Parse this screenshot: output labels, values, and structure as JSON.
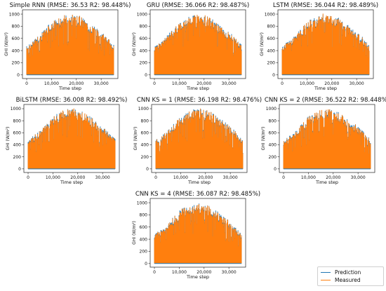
{
  "colors": {
    "prediction": "#1f77b4",
    "measured": "#ff7f0e"
  },
  "legend": {
    "placement": "bottom-right",
    "entries": [
      "Prediction",
      "Measured"
    ]
  },
  "chart_data": [
    {
      "type": "line",
      "title": "Simple RNN (RMSE: 36.53  R2: 98.448%)",
      "xlabel": "Time step",
      "ylabel": "GHI (W/m²)",
      "xlim": [
        0,
        35040
      ],
      "ylim": [
        0,
        1000
      ],
      "xticks": [
        "0",
        "10,000",
        "20,000",
        "30,000"
      ],
      "yticks": [
        "0",
        "200",
        "400",
        "600",
        "800",
        "1000"
      ],
      "series": [
        {
          "name": "Prediction",
          "peak_envelope": {
            "x": [
              0,
              5000,
              10000,
              15000,
              18000,
              22000,
              27000,
              32000,
              35040
            ],
            "y": [
              480,
              650,
              880,
              990,
              1000,
              960,
              810,
              640,
              500
            ]
          }
        },
        {
          "name": "Measured",
          "peak_envelope": {
            "x": [
              0,
              5000,
              10000,
              15000,
              18000,
              22000,
              27000,
              32000,
              35040
            ],
            "y": [
              470,
              640,
              870,
              985,
              1000,
              955,
              800,
              630,
              490
            ]
          }
        }
      ]
    },
    {
      "type": "line",
      "title": "GRU (RMSE: 36.066  R2: 98.487%)",
      "xlabel": "Time step",
      "ylabel": "GHI (W/m²)",
      "xlim": [
        0,
        35040
      ],
      "ylim": [
        0,
        1000
      ],
      "xticks": [
        "0",
        "10,000",
        "20,000",
        "30,000"
      ],
      "yticks": [
        "0",
        "200",
        "400",
        "600",
        "800",
        "1000"
      ],
      "series": [
        {
          "name": "Prediction",
          "peak_envelope": {
            "x": [
              0,
              5000,
              10000,
              15000,
              18000,
              22000,
              27000,
              32000,
              35040
            ],
            "y": [
              480,
              650,
              880,
              990,
              1000,
              960,
              810,
              640,
              500
            ]
          }
        },
        {
          "name": "Measured",
          "peak_envelope": {
            "x": [
              0,
              5000,
              10000,
              15000,
              18000,
              22000,
              27000,
              32000,
              35040
            ],
            "y": [
              470,
              640,
              870,
              985,
              1000,
              955,
              800,
              630,
              490
            ]
          }
        }
      ]
    },
    {
      "type": "line",
      "title": "LSTM (RMSE: 36.044  R2: 98.489%)",
      "xlabel": "Time step",
      "ylabel": "GHI (W/m²)",
      "xlim": [
        0,
        35040
      ],
      "ylim": [
        0,
        1000
      ],
      "xticks": [
        "0",
        "10,000",
        "20,000",
        "30,000"
      ],
      "yticks": [
        "0",
        "200",
        "400",
        "600",
        "800",
        "1000"
      ],
      "series": [
        {
          "name": "Prediction",
          "peak_envelope": {
            "x": [
              0,
              5000,
              10000,
              15000,
              18000,
              22000,
              27000,
              32000,
              35040
            ],
            "y": [
              480,
              650,
              880,
              990,
              1000,
              960,
              810,
              640,
              500
            ]
          }
        },
        {
          "name": "Measured",
          "peak_envelope": {
            "x": [
              0,
              5000,
              10000,
              15000,
              18000,
              22000,
              27000,
              32000,
              35040
            ],
            "y": [
              470,
              640,
              870,
              985,
              1000,
              955,
              800,
              630,
              490
            ]
          }
        }
      ]
    },
    {
      "type": "line",
      "title": "BiLSTM (RMSE: 36.008  R2: 98.492%)",
      "xlabel": "Time step",
      "ylabel": "GHI (W/m²)",
      "xlim": [
        0,
        35040
      ],
      "ylim": [
        0,
        1000
      ],
      "xticks": [
        "0",
        "10,000",
        "20,000",
        "30,000"
      ],
      "yticks": [
        "0",
        "200",
        "400",
        "600",
        "800",
        "1000"
      ],
      "series": [
        {
          "name": "Prediction",
          "peak_envelope": {
            "x": [
              0,
              5000,
              10000,
              15000,
              18000,
              22000,
              27000,
              32000,
              35040
            ],
            "y": [
              480,
              650,
              880,
              990,
              1000,
              960,
              810,
              640,
              500
            ]
          }
        },
        {
          "name": "Measured",
          "peak_envelope": {
            "x": [
              0,
              5000,
              10000,
              15000,
              18000,
              22000,
              27000,
              32000,
              35040
            ],
            "y": [
              470,
              640,
              870,
              985,
              1000,
              955,
              800,
              630,
              490
            ]
          }
        }
      ]
    },
    {
      "type": "line",
      "title": "CNN KS = 1 (RMSE: 36.198  R2: 98.476%)",
      "xlabel": "Time step",
      "ylabel": "GHI (W/m²)",
      "xlim": [
        0,
        35040
      ],
      "ylim": [
        0,
        1000
      ],
      "xticks": [
        "0",
        "10,000",
        "20,000",
        "30,000"
      ],
      "yticks": [
        "0",
        "200",
        "400",
        "600",
        "800",
        "1000"
      ],
      "series": [
        {
          "name": "Prediction",
          "peak_envelope": {
            "x": [
              0,
              5000,
              10000,
              15000,
              18000,
              22000,
              27000,
              32000,
              35040
            ],
            "y": [
              480,
              650,
              880,
              990,
              1000,
              960,
              810,
              640,
              500
            ]
          }
        },
        {
          "name": "Measured",
          "peak_envelope": {
            "x": [
              0,
              5000,
              10000,
              15000,
              18000,
              22000,
              27000,
              32000,
              35040
            ],
            "y": [
              470,
              640,
              870,
              985,
              1000,
              955,
              800,
              630,
              490
            ]
          }
        }
      ]
    },
    {
      "type": "line",
      "title": "CNN KS = 2 (RMSE: 36.522  R2: 98.448%)",
      "xlabel": "Time step",
      "ylabel": "GHI (W/m²)",
      "xlim": [
        0,
        35040
      ],
      "ylim": [
        0,
        1000
      ],
      "xticks": [
        "0",
        "10,000",
        "20,000",
        "30,000"
      ],
      "yticks": [
        "0",
        "200",
        "400",
        "600",
        "800",
        "1000"
      ],
      "series": [
        {
          "name": "Prediction",
          "peak_envelope": {
            "x": [
              0,
              5000,
              10000,
              15000,
              18000,
              22000,
              27000,
              32000,
              35040
            ],
            "y": [
              480,
              650,
              880,
              990,
              1000,
              960,
              810,
              640,
              500
            ]
          }
        },
        {
          "name": "Measured",
          "peak_envelope": {
            "x": [
              0,
              5000,
              10000,
              15000,
              18000,
              22000,
              27000,
              32000,
              35040
            ],
            "y": [
              470,
              640,
              870,
              985,
              1000,
              955,
              800,
              630,
              490
            ]
          }
        }
      ]
    },
    {
      "type": "line",
      "title": "CNN KS = 4 (RMSE: 36.087  R2: 98.485%)",
      "xlabel": "Time step",
      "ylabel": "GHI (W/m²)",
      "xlim": [
        0,
        35040
      ],
      "ylim": [
        0,
        1000
      ],
      "xticks": [
        "0",
        "10,000",
        "20,000",
        "30,000"
      ],
      "yticks": [
        "0",
        "200",
        "400",
        "600",
        "800",
        "1000"
      ],
      "series": [
        {
          "name": "Prediction",
          "peak_envelope": {
            "x": [
              0,
              5000,
              10000,
              15000,
              18000,
              22000,
              27000,
              32000,
              35040
            ],
            "y": [
              480,
              650,
              880,
              990,
              1000,
              960,
              810,
              640,
              500
            ]
          }
        },
        {
          "name": "Measured",
          "peak_envelope": {
            "x": [
              0,
              5000,
              10000,
              15000,
              18000,
              22000,
              27000,
              32000,
              35040
            ],
            "y": [
              470,
              640,
              870,
              985,
              1000,
              955,
              800,
              630,
              490
            ]
          }
        }
      ]
    }
  ]
}
